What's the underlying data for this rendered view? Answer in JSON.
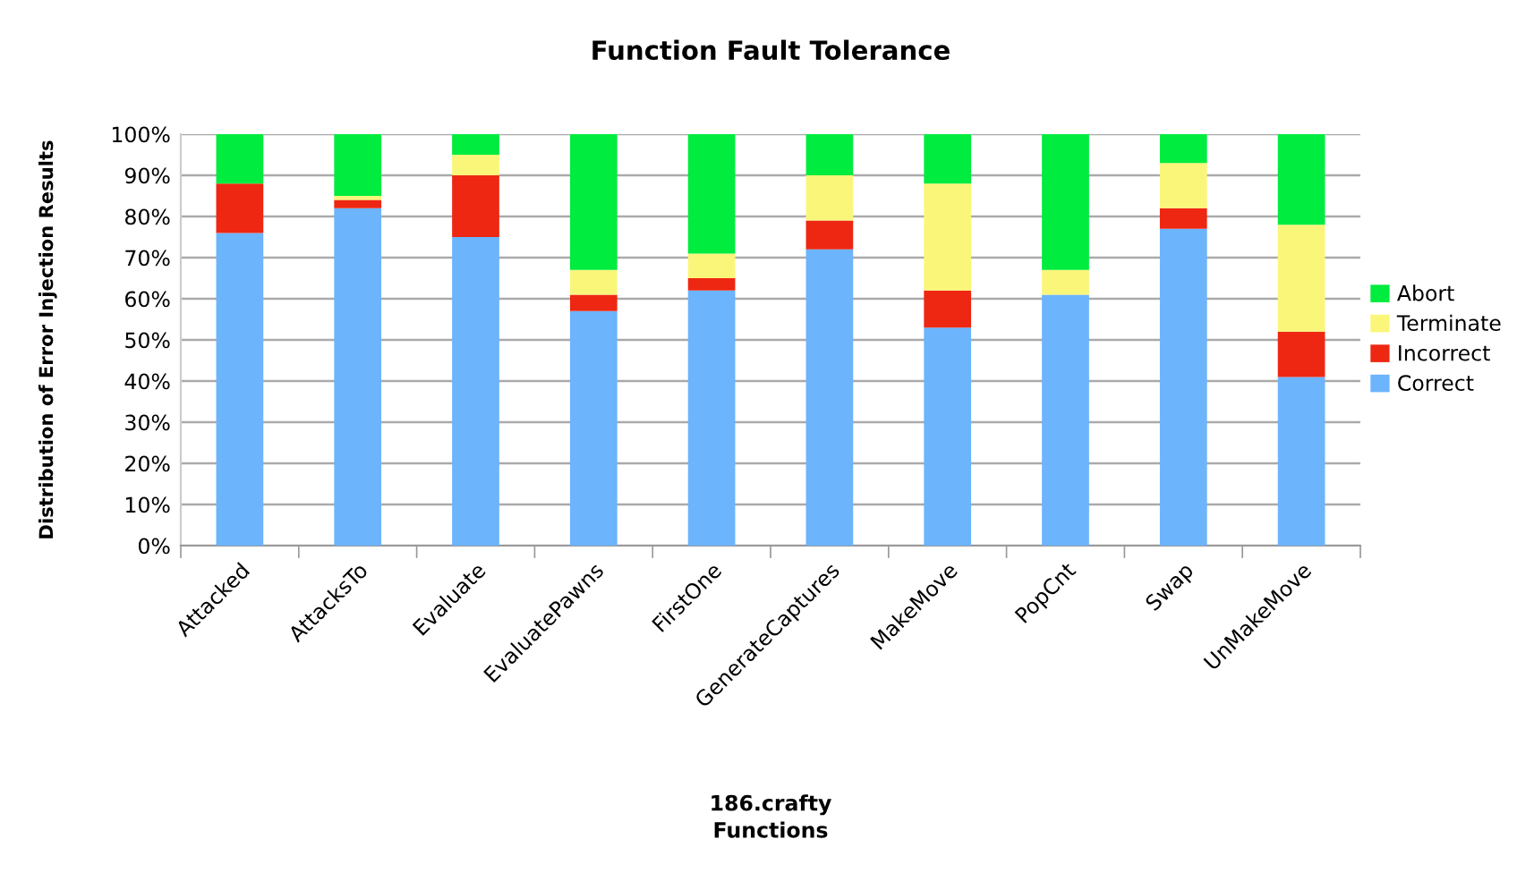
{
  "chart_data": {
    "type": "bar",
    "title": "Function Fault Tolerance",
    "xlabel": "186.crafty\nFunctions",
    "ylabel": "Distribution of Error Injection Results",
    "categories": [
      "Attacked",
      "AttacksTo",
      "Evaluate",
      "EvaluatePawns",
      "FirstOne",
      "GenerateCaptures",
      "MakeMove",
      "PopCnt",
      "Swap",
      "UnMakeMove"
    ],
    "stacked": true,
    "series": [
      {
        "name": "Correct",
        "color": "#6cb4fc",
        "values": [
          76,
          82,
          75,
          57,
          62,
          72,
          53,
          61,
          77,
          41
        ]
      },
      {
        "name": "Incorrect",
        "color": "#ee2712",
        "values": [
          12,
          2,
          15,
          4,
          3,
          7,
          9,
          0,
          5,
          11
        ]
      },
      {
        "name": "Terminate",
        "color": "#faf67a",
        "values": [
          0,
          1,
          5,
          6,
          6,
          11,
          26,
          6,
          11,
          26
        ]
      },
      {
        "name": "Abort",
        "color": "#00ec3f",
        "values": [
          12,
          15,
          5,
          33,
          29,
          10,
          12,
          33,
          7,
          22
        ]
      }
    ],
    "ylim": [
      0,
      100
    ],
    "yticks": [
      {
        "value": 0,
        "label": "0%"
      },
      {
        "value": 10,
        "label": "10%"
      },
      {
        "value": 20,
        "label": "20%"
      },
      {
        "value": 30,
        "label": "30%"
      },
      {
        "value": 40,
        "label": "40%"
      },
      {
        "value": 50,
        "label": "50%"
      },
      {
        "value": 60,
        "label": "60%"
      },
      {
        "value": 70,
        "label": "70%"
      },
      {
        "value": 80,
        "label": "80%"
      },
      {
        "value": 90,
        "label": "90%"
      },
      {
        "value": 100,
        "label": "100%"
      }
    ],
    "grid": "y",
    "legend": "right"
  }
}
